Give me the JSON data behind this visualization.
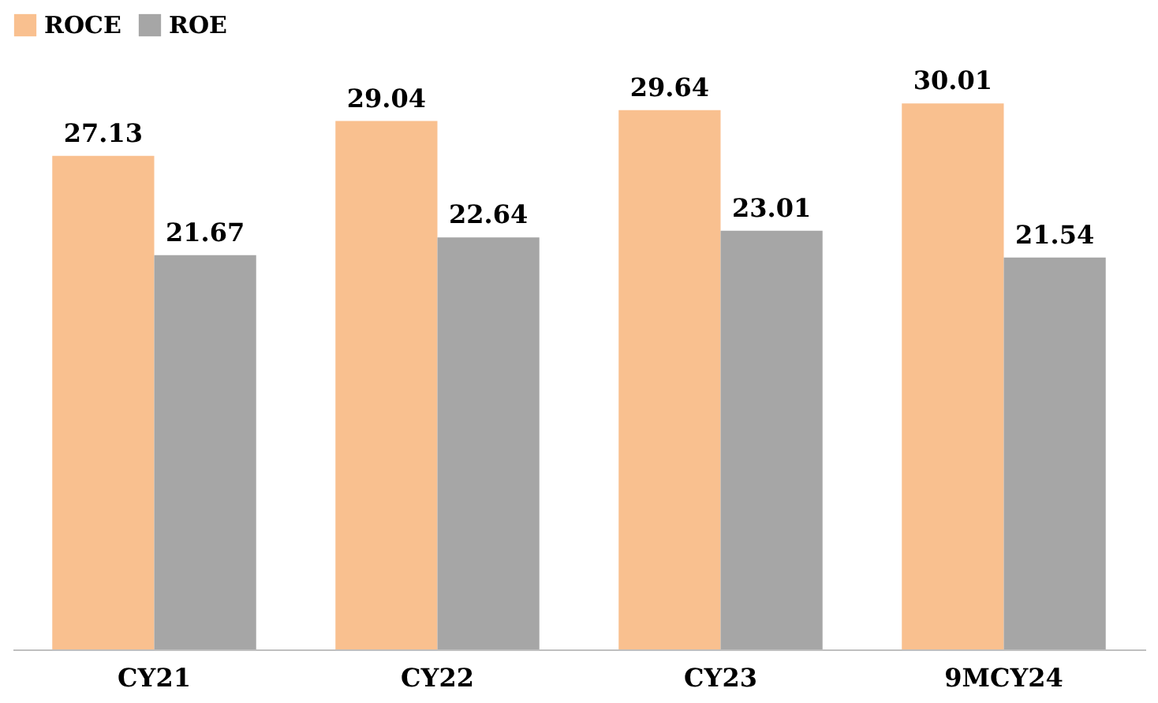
{
  "chart_data": {
    "type": "bar",
    "categories": [
      "CY21",
      "CY22",
      "CY23",
      "9MCY24"
    ],
    "series": [
      {
        "name": "ROCE",
        "color": "#f9c08f",
        "values": [
          27.13,
          29.04,
          29.64,
          30.01
        ]
      },
      {
        "name": "ROE",
        "color": "#a6a6a6",
        "values": [
          21.67,
          22.64,
          23.01,
          21.54
        ]
      }
    ],
    "data_labels": true,
    "legend": "top left",
    "grid": false
  }
}
